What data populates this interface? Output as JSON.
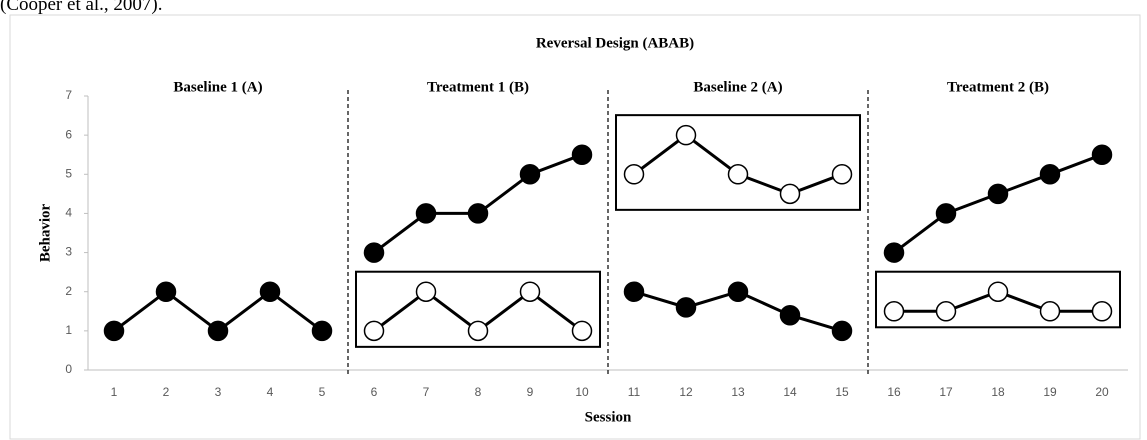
{
  "caption": "(Cooper et al., 2007).",
  "chart_data": {
    "type": "line",
    "title": "Reversal Design (ABAB)",
    "x_label": "Session",
    "y_label": "Behavior",
    "x": [
      1,
      2,
      3,
      4,
      5,
      6,
      7,
      8,
      9,
      10,
      11,
      12,
      13,
      14,
      15,
      16,
      17,
      18,
      19,
      20
    ],
    "xlim": [
      0.5,
      20.5
    ],
    "xticks": [
      1,
      2,
      3,
      4,
      5,
      6,
      7,
      8,
      9,
      10,
      11,
      12,
      13,
      14,
      15,
      16,
      17,
      18,
      19,
      20
    ],
    "ylim": [
      0,
      7
    ],
    "yticks": [
      0,
      1,
      2,
      3,
      4,
      5,
      6,
      7
    ],
    "phase_lines": [
      5.5,
      10.5,
      15.5
    ],
    "phase_labels": [
      "Baseline 1 (A)",
      "Treatment 1 (B)",
      "Baseline 2 (A)",
      "Treatment 2 (B)"
    ],
    "series": [
      {
        "color": "#000000",
        "marker_fill": "#000000",
        "boxed": false,
        "values": [
          1,
          2,
          1,
          2,
          1,
          3,
          4,
          4,
          5,
          5.5,
          2,
          1.6,
          2,
          1.4,
          1,
          3,
          4,
          4.5,
          5,
          5.5
        ]
      },
      {
        "color": "#000000",
        "marker_fill": "#ffffff",
        "boxed": true,
        "values": [
          null,
          null,
          null,
          null,
          null,
          1,
          2,
          1,
          2,
          1,
          5,
          6,
          5,
          4.5,
          5,
          1.5,
          1.5,
          2,
          1.5,
          1.5
        ]
      }
    ]
  }
}
